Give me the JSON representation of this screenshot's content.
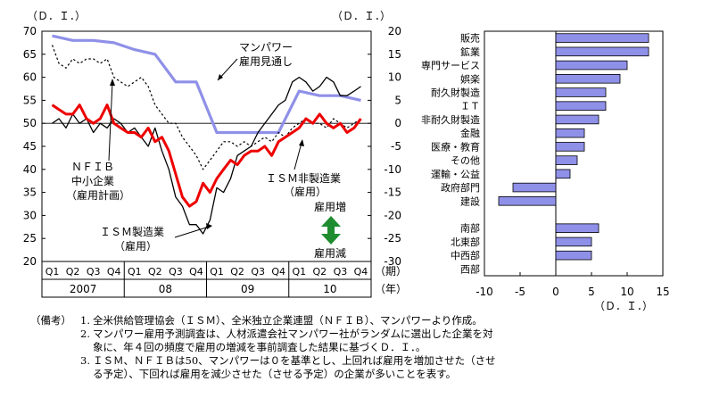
{
  "chart_data": [
    {
      "type": "line",
      "left_unit": "（Ｄ．Ｉ．）",
      "right_unit": "（Ｄ．Ｉ．）",
      "ylim_left": [
        20,
        70
      ],
      "yticks_left": [
        20,
        25,
        30,
        35,
        40,
        45,
        50,
        55,
        60,
        65,
        70
      ],
      "ylim_right": [
        -30,
        20
      ],
      "yticks_right": [
        -30,
        -25,
        -20,
        -15,
        -10,
        -5,
        0,
        5,
        10,
        15,
        20
      ],
      "quarters": [
        "Q1",
        "Q2",
        "Q3",
        "Q4",
        "Q1",
        "Q2",
        "Q3",
        "Q4",
        "Q1",
        "Q2",
        "Q3",
        "Q4",
        "Q1",
        "Q2",
        "Q3",
        "Q4"
      ],
      "years": [
        "2007",
        "08",
        "09",
        "10"
      ],
      "period_label": "（期）",
      "year_label": "（年）",
      "baseline_left": 50,
      "series": [
        {
          "key": "manpower",
          "axis": "right",
          "color": "#8f90e8",
          "x": [
            0,
            1,
            2,
            3,
            4,
            5,
            6,
            7,
            8,
            9,
            10,
            11,
            12,
            13,
            14,
            15
          ],
          "values": [
            19,
            18,
            18,
            17.5,
            16,
            15,
            9,
            9,
            -2,
            -2,
            -2,
            -2,
            7,
            6,
            6,
            5
          ]
        },
        {
          "key": "nfib",
          "axis": "left",
          "color": "#000000",
          "x": [
            0,
            0.33,
            0.67,
            1,
            1.33,
            1.67,
            2,
            2.33,
            2.67,
            3,
            3.33,
            3.67,
            4,
            4.33,
            4.67,
            5,
            5.33,
            5.67,
            6,
            6.33,
            6.67,
            7,
            7.33,
            7.67,
            8,
            8.33,
            8.67,
            9,
            9.33,
            9.67,
            10,
            10.33,
            10.67,
            11,
            11.33,
            11.67,
            12,
            12.33,
            12.67,
            13,
            13.33,
            13.67,
            14,
            14.33,
            14.67,
            15
          ],
          "values": [
            67,
            63,
            62,
            64,
            63,
            64,
            64,
            63,
            64,
            60,
            59,
            58,
            59,
            60,
            58,
            54,
            52,
            50,
            50,
            47,
            45,
            43,
            40,
            42,
            44,
            46,
            46,
            45,
            46,
            45,
            46,
            47,
            46,
            48,
            47,
            49,
            50,
            51,
            50,
            50,
            49,
            51,
            50,
            49,
            50,
            51
          ]
        },
        {
          "key": "ism_mfg",
          "axis": "left",
          "color": "#000000",
          "x": [
            0,
            0.33,
            0.67,
            1,
            1.33,
            1.67,
            2,
            2.33,
            2.67,
            3,
            3.33,
            3.67,
            4,
            4.33,
            4.67,
            5,
            5.33,
            5.67,
            6,
            6.33,
            6.67,
            7,
            7.33,
            7.67,
            8,
            8.33,
            8.67,
            9,
            9.33,
            9.67,
            10,
            10.33,
            10.67,
            11,
            11.33,
            11.67,
            12,
            12.33,
            12.67,
            13,
            13.33,
            13.67,
            14,
            14.33,
            14.67,
            15
          ],
          "values": [
            50,
            51,
            49,
            52,
            50,
            51,
            48,
            50,
            49,
            51,
            50,
            48,
            49,
            47,
            45,
            49,
            44,
            40,
            34,
            32,
            28,
            28,
            26,
            29,
            36,
            35,
            38,
            43,
            44,
            45,
            48,
            50,
            52,
            54,
            55,
            59,
            60,
            59,
            57,
            58,
            60,
            59,
            56,
            56,
            57,
            58
          ]
        },
        {
          "key": "ism_nonmfg",
          "axis": "left",
          "color": "#ee0000",
          "x": [
            0,
            0.33,
            0.67,
            1,
            1.33,
            1.67,
            2,
            2.33,
            2.67,
            3,
            3.33,
            3.67,
            4,
            4.33,
            4.67,
            5,
            5.33,
            5.67,
            6,
            6.33,
            6.67,
            7,
            7.33,
            7.67,
            8,
            8.33,
            8.67,
            9,
            9.33,
            9.67,
            10,
            10.33,
            10.67,
            11,
            11.33,
            11.67,
            12,
            12.33,
            12.67,
            13,
            13.33,
            13.67,
            14,
            14.33,
            14.67,
            15
          ],
          "values": [
            54,
            53,
            52,
            52,
            54,
            51,
            50,
            51,
            54,
            50,
            49,
            48,
            48,
            47,
            49,
            46,
            47,
            44,
            39,
            34,
            32,
            33,
            37,
            35,
            38,
            40,
            42,
            41,
            43,
            44,
            44,
            45,
            43,
            46,
            47,
            48,
            49,
            51,
            50,
            52,
            50,
            49,
            50,
            48,
            49,
            51
          ]
        }
      ],
      "annotations": {
        "manpower": [
          "マンパワー",
          "雇用見通し"
        ],
        "nfib": [
          "ＮＦＩＢ",
          "中小企業",
          "（雇用計画）"
        ],
        "ism_nonmfg": [
          "ＩＳＭ非製造業",
          "（雇用）"
        ],
        "ism_mfg": [
          "ＩＳＭ製造業",
          "（雇用）"
        ],
        "up": "雇用増",
        "down": "雇用減"
      },
      "arrow_color": "#1f8c2f"
    },
    {
      "type": "bar",
      "orientation": "horizontal",
      "categories": [
        "販売",
        "鉱業",
        "専門サービス",
        "娯楽",
        "耐久財製造",
        "ＩＴ",
        "非耐久財製造",
        "金融",
        "医療・教育",
        "その他",
        "運輸・公益",
        "政府部門",
        "建設",
        "",
        "南部",
        "北東部",
        "中西部",
        "西部"
      ],
      "values": [
        13,
        13,
        10,
        9,
        7,
        7,
        6,
        4,
        4,
        3,
        2,
        -6,
        -8,
        null,
        6,
        5,
        5,
        0
      ],
      "xlim": [
        -10,
        15
      ],
      "xticks": [
        -10,
        -5,
        0,
        5,
        10,
        15
      ],
      "xunit": "（Ｄ．Ｉ．）",
      "bar_color": "#8f90e8"
    }
  ],
  "notes": {
    "lead": "（備考）",
    "items": [
      {
        "num": "1.",
        "text": "全米供給管理協会（ＩＳＭ）、全米独立企業連盟（ＮＦＩＢ）、マンパワーより作成。"
      },
      {
        "num": "2.",
        "text": "マンパワー雇用予測調査は、人材派遣会社マンパワー社がランダムに選出した企業を対\n象に、年４回の頻度で雇用の増減を事前調査した結果に基づくＤ．Ｉ．。"
      },
      {
        "num": "3.",
        "text": "ＩＳＭ、ＮＦＩＢは50、マンパワーは０を基準とし、上回れば雇用を増加させた（させ\nる予定）、下回れば雇用を減少させた（させる予定）の企業が多いことを表す。"
      }
    ]
  }
}
